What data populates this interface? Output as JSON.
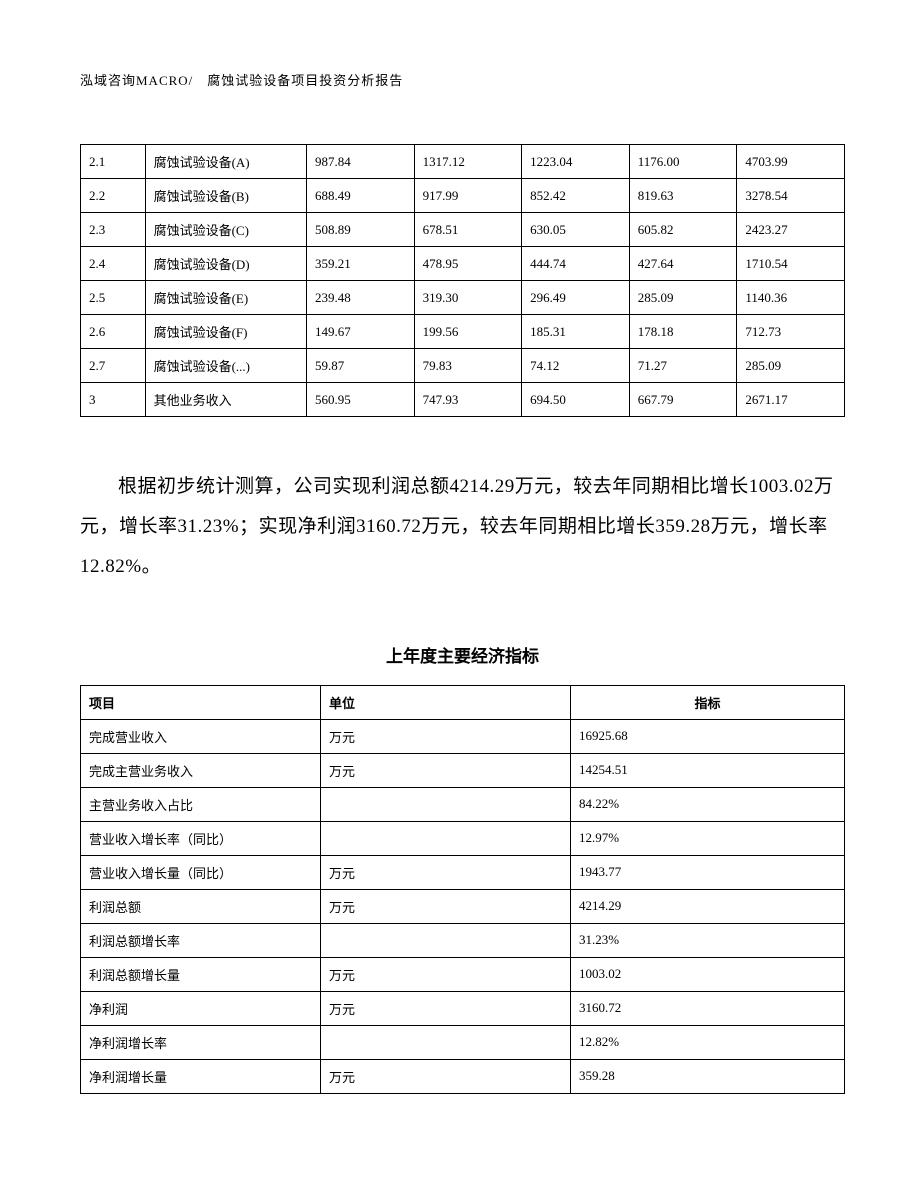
{
  "header": "泓域咨询MACRO/　腐蚀试验设备项目投资分析报告",
  "table1": {
    "rows": [
      [
        "2.1",
        "腐蚀试验设备(A)",
        "987.84",
        "1317.12",
        "1223.04",
        "1176.00",
        "4703.99"
      ],
      [
        "2.2",
        "腐蚀试验设备(B)",
        "688.49",
        "917.99",
        "852.42",
        "819.63",
        "3278.54"
      ],
      [
        "2.3",
        "腐蚀试验设备(C)",
        "508.89",
        "678.51",
        "630.05",
        "605.82",
        "2423.27"
      ],
      [
        "2.4",
        "腐蚀试验设备(D)",
        "359.21",
        "478.95",
        "444.74",
        "427.64",
        "1710.54"
      ],
      [
        "2.5",
        "腐蚀试验设备(E)",
        "239.48",
        "319.30",
        "296.49",
        "285.09",
        "1140.36"
      ],
      [
        "2.6",
        "腐蚀试验设备(F)",
        "149.67",
        "199.56",
        "185.31",
        "178.18",
        "712.73"
      ],
      [
        "2.7",
        "腐蚀试验设备(...)",
        "59.87",
        "79.83",
        "74.12",
        "71.27",
        "285.09"
      ],
      [
        "3",
        "其他业务收入",
        "560.95",
        "747.93",
        "694.50",
        "667.79",
        "2671.17"
      ]
    ]
  },
  "paragraph": "根据初步统计测算，公司实现利润总额4214.29万元，较去年同期相比增长1003.02万元，增长率31.23%；实现净利润3160.72万元，较去年同期相比增长359.28万元，增长率12.82%。",
  "table2": {
    "title": "上年度主要经济指标",
    "headers": [
      "项目",
      "单位",
      "指标"
    ],
    "rows": [
      [
        "完成营业收入",
        "万元",
        "16925.68"
      ],
      [
        "完成主营业务收入",
        "万元",
        "14254.51"
      ],
      [
        "主营业务收入占比",
        "",
        "84.22%"
      ],
      [
        "营业收入增长率（同比）",
        "",
        "12.97%"
      ],
      [
        "营业收入增长量（同比）",
        "万元",
        "1943.77"
      ],
      [
        "利润总额",
        "万元",
        "4214.29"
      ],
      [
        "利润总额增长率",
        "",
        "31.23%"
      ],
      [
        "利润总额增长量",
        "万元",
        "1003.02"
      ],
      [
        "净利润",
        "万元",
        "3160.72"
      ],
      [
        "净利润增长率",
        "",
        "12.82%"
      ],
      [
        "净利润增长量",
        "万元",
        "359.28"
      ]
    ]
  }
}
